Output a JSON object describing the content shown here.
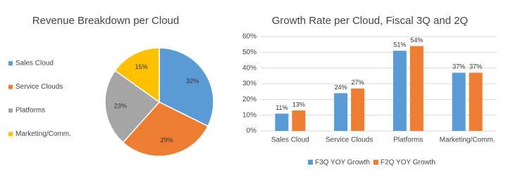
{
  "chart_data": [
    {
      "type": "pie",
      "title": "Revenue Breakdown per Cloud",
      "categories": [
        "Sales Cloud",
        "Service Clouds",
        "Platforms",
        "Marketing/Comm."
      ],
      "values": [
        32,
        29,
        23,
        15
      ],
      "value_labels": [
        "32%",
        "29%",
        "23%",
        "15%"
      ],
      "colors": [
        "#5b9bd5",
        "#ed7d31",
        "#a5a5a5",
        "#ffc000"
      ],
      "legend": "left"
    },
    {
      "type": "bar",
      "title": "Growth Rate per Cloud, Fiscal 3Q and 2Q",
      "categories": [
        "Sales Cloud",
        "Service Clouds",
        "Platforms",
        "Marketing/Comm."
      ],
      "series": [
        {
          "name": "F3Q YOY Growth",
          "color": "#5b9bd5",
          "values": [
            11,
            24,
            51,
            37
          ],
          "value_labels": [
            "11%",
            "24%",
            "51%",
            "37%"
          ]
        },
        {
          "name": "F2Q YOY Growth",
          "color": "#ed7d31",
          "values": [
            13,
            27,
            54,
            37
          ],
          "value_labels": [
            "13%",
            "27%",
            "54%",
            "37%"
          ]
        }
      ],
      "ylim": [
        0,
        60
      ],
      "yticks": [
        {
          "value": 0,
          "label": "0%"
        },
        {
          "value": 10,
          "label": "10%"
        },
        {
          "value": 20,
          "label": "20%"
        },
        {
          "value": 30,
          "label": "30%"
        },
        {
          "value": 40,
          "label": "40%"
        },
        {
          "value": 50,
          "label": "50%"
        },
        {
          "value": 60,
          "label": "60%"
        }
      ],
      "grid": true,
      "legend": "bottom"
    }
  ]
}
